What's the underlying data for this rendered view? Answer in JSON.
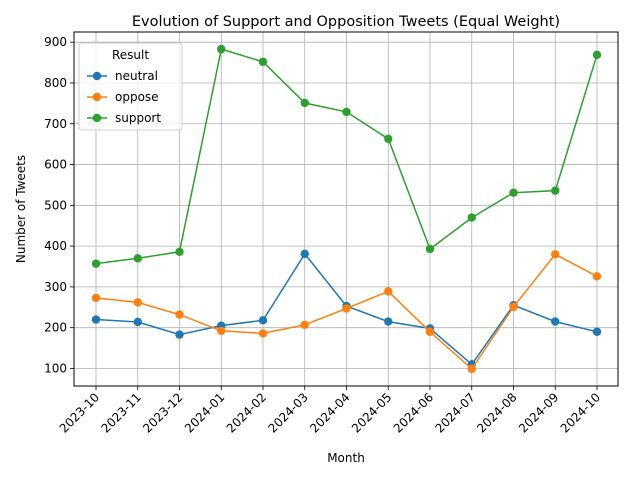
{
  "chart_data": {
    "type": "line",
    "title": "Evolution of Support and Opposition Tweets (Equal Weight)",
    "xlabel": "Month",
    "ylabel": "Number of Tweets",
    "categories": [
      "2023-10",
      "2023-11",
      "2023-12",
      "2024-01",
      "2024-02",
      "2024-03",
      "2024-04",
      "2024-05",
      "2024-06",
      "2024-07",
      "2024-08",
      "2024-09",
      "2024-10"
    ],
    "ylim": [
      57,
      925
    ],
    "yticks": [
      100,
      200,
      300,
      400,
      500,
      600,
      700,
      800,
      900
    ],
    "grid": true,
    "legend": {
      "title": "Result",
      "placement": "upper-left"
    },
    "series": [
      {
        "name": "neutral",
        "color": "#1f77b4",
        "values": [
          220,
          214,
          183,
          205,
          218,
          381,
          253,
          215,
          198,
          110,
          255,
          215,
          190
        ]
      },
      {
        "name": "oppose",
        "color": "#ff7f0e",
        "values": [
          273,
          262,
          232,
          192,
          186,
          207,
          247,
          289,
          190,
          99,
          251,
          380,
          326
        ]
      },
      {
        "name": "support",
        "color": "#2ca02c",
        "values": [
          357,
          370,
          386,
          883,
          852,
          751,
          729,
          663,
          393,
          470,
          531,
          536,
          869
        ]
      }
    ]
  }
}
